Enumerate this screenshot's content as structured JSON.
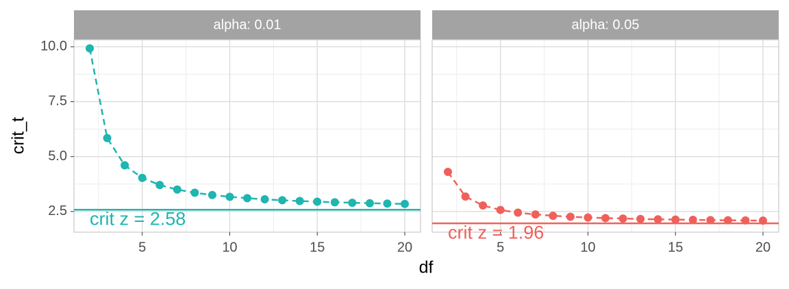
{
  "xlabel": "df",
  "ylabel": "crit_t",
  "xlim": [
    1.1,
    20.9
  ],
  "xticks": [
    5,
    10,
    15,
    20
  ],
  "x_minor_ticks": [
    2.5,
    7.5,
    12.5,
    17.5
  ],
  "ylim": [
    1.56,
    10.32
  ],
  "yticks": [
    {
      "value": 2.5,
      "label": "2.5"
    },
    {
      "value": 5,
      "label": "5.0"
    },
    {
      "value": 7.5,
      "label": "7.5"
    },
    {
      "value": 10,
      "label": "10.0"
    }
  ],
  "y_minor_ticks": [
    3.75,
    6.25,
    8.75
  ],
  "grid": true,
  "chart_data": [
    {
      "type": "line",
      "title": "alpha: 0.01",
      "color": "#1fb5b0",
      "x": [
        2,
        3,
        4,
        5,
        6,
        7,
        8,
        9,
        10,
        11,
        12,
        13,
        14,
        15,
        16,
        17,
        18,
        19,
        20
      ],
      "values": [
        9.925,
        5.841,
        4.604,
        4.032,
        3.707,
        3.499,
        3.355,
        3.25,
        3.169,
        3.106,
        3.055,
        3.012,
        2.977,
        2.947,
        2.921,
        2.898,
        2.878,
        2.861,
        2.845
      ],
      "hline": 2.58,
      "annotation": "crit z = 2.58"
    },
    {
      "type": "line",
      "title": "alpha: 0.05",
      "color": "#f0605a",
      "x": [
        2,
        3,
        4,
        5,
        6,
        7,
        8,
        9,
        10,
        11,
        12,
        13,
        14,
        15,
        16,
        17,
        18,
        19,
        20
      ],
      "values": [
        4.303,
        3.182,
        2.776,
        2.571,
        2.447,
        2.365,
        2.306,
        2.262,
        2.228,
        2.201,
        2.179,
        2.16,
        2.145,
        2.131,
        2.12,
        2.11,
        2.101,
        2.093,
        2.086
      ],
      "hline": 1.96,
      "annotation": "crit z = 1.96"
    }
  ]
}
